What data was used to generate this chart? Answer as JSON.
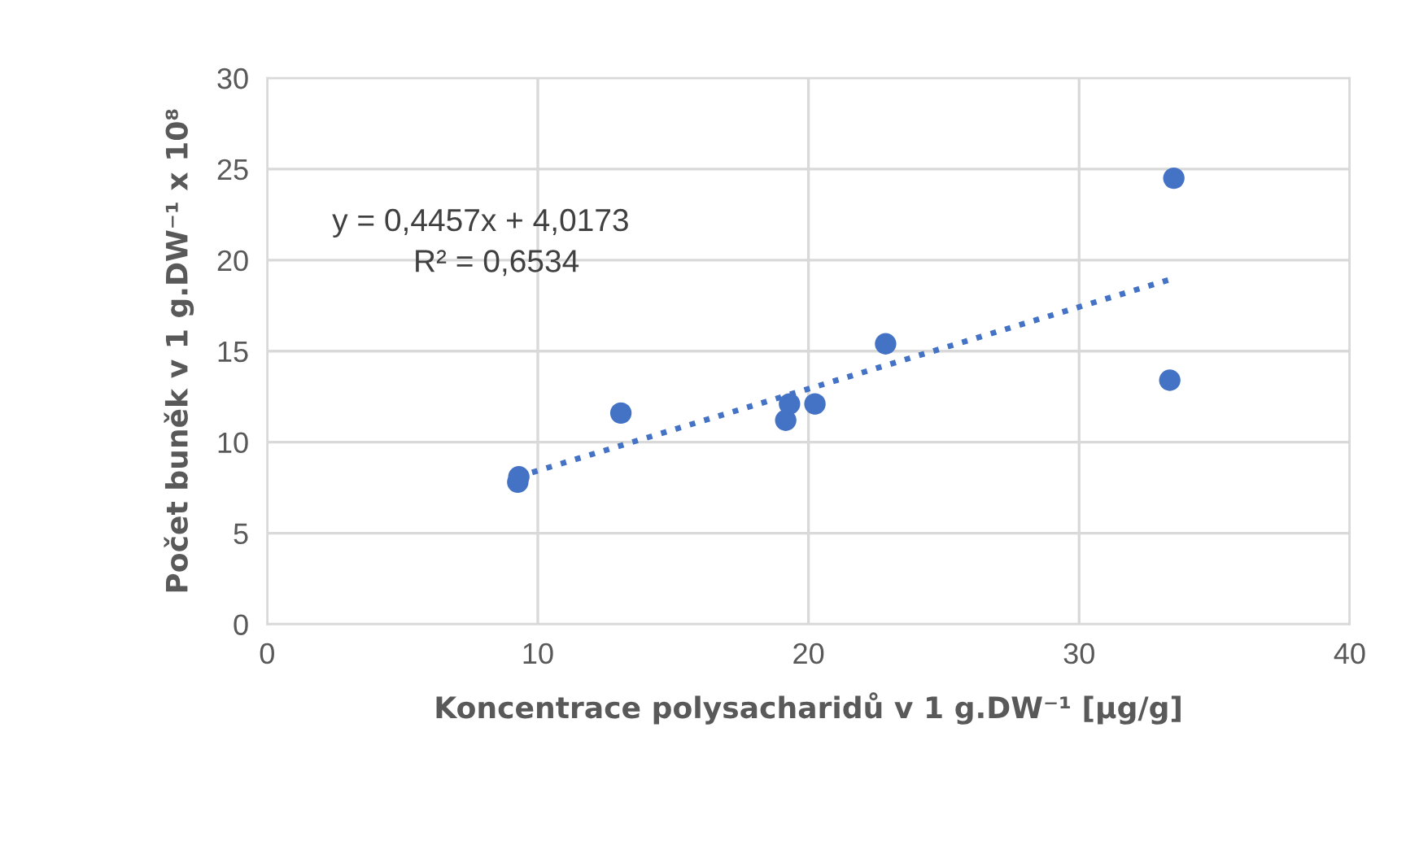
{
  "chart_data": {
    "type": "scatter",
    "xlabel": "Koncentrace polysacharidů v 1 g.DW⁻¹ [μg/g]",
    "ylabel": "Počet buněk v 1 g.DW⁻¹ x 10⁸",
    "x": [
      9.26,
      9.3,
      13.07,
      19.16,
      19.3,
      20.24,
      22.85,
      33.5,
      33.35
    ],
    "series": [
      {
        "color": "#4472c4",
        "marker": "circle",
        "values": [
          7.8,
          8.1,
          11.6,
          11.2,
          12.1,
          12.1,
          15.4,
          24.5,
          13.4
        ]
      },
      {
        "type": "line",
        "color": "#4472c4",
        "line_style": "dotted",
        "x": [
          9.26,
          33.5
        ],
        "values": [
          8.1,
          19.0
        ]
      }
    ],
    "annotations": [
      "y = 0,4457x + 4,0173",
      "R² = 0,6534"
    ],
    "xlim": [
      0,
      40
    ],
    "ylim": [
      0,
      30
    ],
    "xticks": [
      0,
      10,
      20,
      30,
      40
    ],
    "yticks": [
      0,
      5,
      10,
      15,
      20,
      25,
      30
    ],
    "grid": true,
    "legend": false
  }
}
